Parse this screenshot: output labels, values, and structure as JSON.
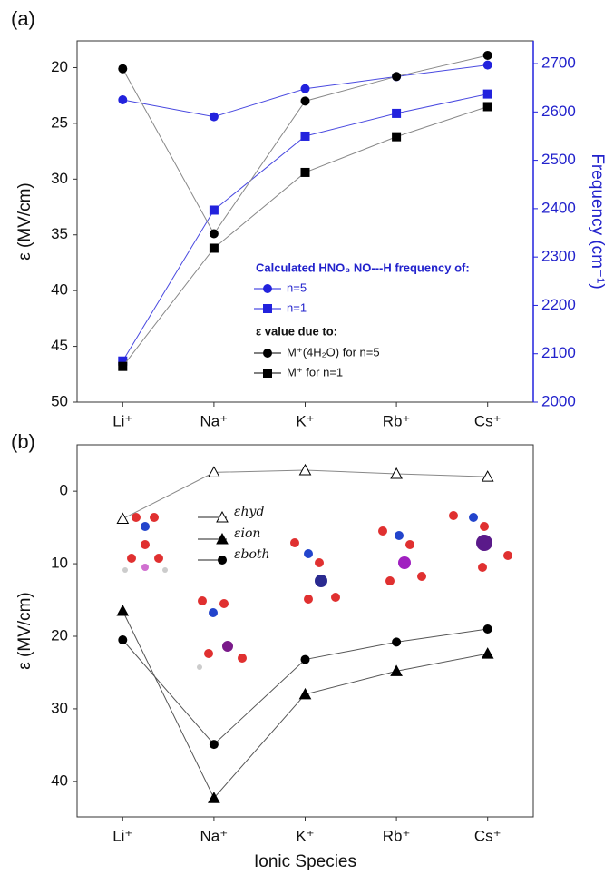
{
  "chart_data": [
    {
      "type": "line",
      "panel_label": "(a)",
      "categories": [
        "Li⁺",
        "Na⁺",
        "K⁺",
        "Rb⁺",
        "Cs⁺"
      ],
      "ylabel": "ε (MV/cm)",
      "y2label": "Frequency (cm⁻¹)",
      "ylim": [
        50,
        17.6
      ],
      "yticks": [
        20,
        25,
        30,
        35,
        40,
        45,
        50
      ],
      "y2lim": [
        2000,
        2747
      ],
      "y2ticks": [
        2000,
        2100,
        2200,
        2300,
        2400,
        2500,
        2600,
        2700
      ],
      "legend_title_y2": "Calculated HNO₃ NO---H frequency of:",
      "legend_title_y": "ε value due to:",
      "series": [
        {
          "name": "n=5",
          "axis": "y2",
          "color": "#2222dd",
          "line_color": "#4a4ae0",
          "marker": "circle",
          "values": [
            2625,
            2590,
            2648,
            2673,
            2697
          ]
        },
        {
          "name": "n=1",
          "axis": "y2",
          "color": "#2222dd",
          "line_color": "#4a4ae0",
          "marker": "square",
          "values": [
            2085,
            2397,
            2550,
            2597,
            2637
          ]
        },
        {
          "name": "M⁺(4H₂O) for n=5",
          "color": "#000000",
          "line_color": "#888888",
          "marker": "circle",
          "values": [
            20.1,
            34.9,
            23.0,
            20.8,
            18.9
          ]
        },
        {
          "name": "M⁺ for n=1",
          "color": "#000000",
          "line_color": "#888888",
          "marker": "square",
          "values": [
            46.8,
            36.2,
            29.4,
            26.2,
            23.5
          ]
        }
      ]
    },
    {
      "type": "line",
      "panel_label": "(b)",
      "categories": [
        "Li⁺",
        "Na⁺",
        "K⁺",
        "Rb⁺",
        "Cs⁺"
      ],
      "ylabel": "ε (MV/cm)",
      "xlabel": "Ionic Species",
      "ylim": [
        44.9,
        -6.4
      ],
      "yticks": [
        0,
        10,
        20,
        30,
        40
      ],
      "series": [
        {
          "name": "εhyd",
          "color": "#000000",
          "line_color": "#888888",
          "marker": "triangle-open",
          "values": [
            3.8,
            -2.6,
            -2.9,
            -2.4,
            -2.0
          ]
        },
        {
          "name": "εion",
          "color": "#000000",
          "line_color": "#555555",
          "marker": "triangle",
          "values": [
            16.5,
            42.3,
            28.0,
            24.8,
            22.4
          ]
        },
        {
          "name": "εboth",
          "color": "#000000",
          "line_color": "#555555",
          "marker": "circle",
          "values": [
            20.5,
            34.9,
            23.2,
            20.8,
            19.0
          ]
        }
      ]
    }
  ]
}
